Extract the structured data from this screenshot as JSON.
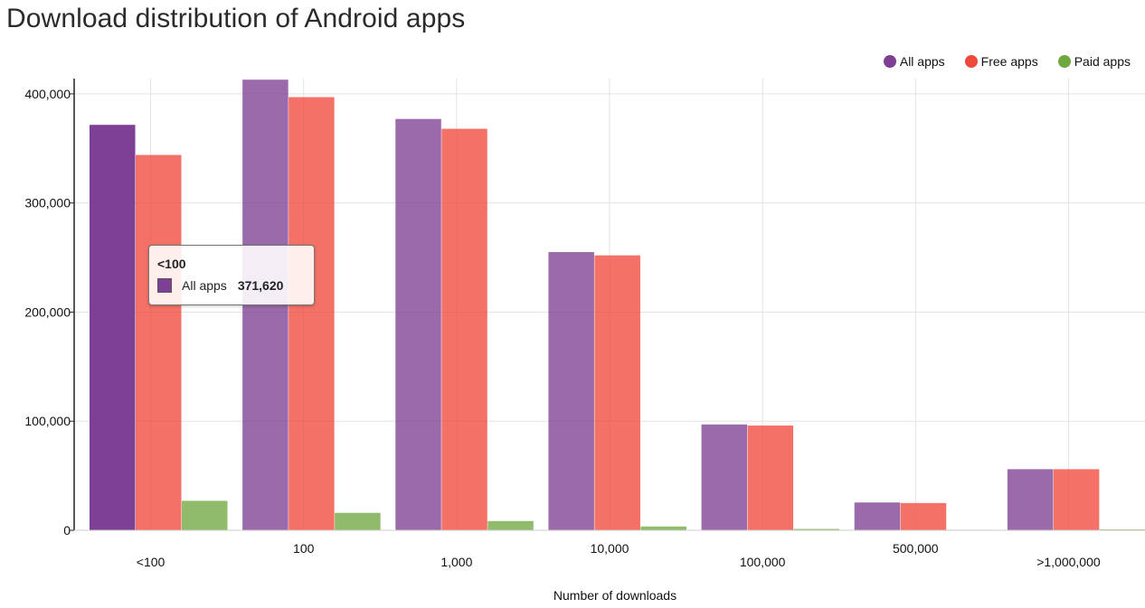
{
  "chart_data": {
    "type": "bar",
    "title": "Download distribution of Android apps",
    "xlabel": "Number of downloads",
    "ylabel": "",
    "categories": [
      "<100",
      "100",
      "1,000",
      "10,000",
      "100,000",
      "500,000",
      ">1,000,000"
    ],
    "series": [
      {
        "name": "All apps",
        "color": "#7e4094",
        "values": [
          371620,
          413000,
          377000,
          255000,
          97000,
          25500,
          56000
        ]
      },
      {
        "name": "Free apps",
        "color": "#f0493b",
        "values": [
          344000,
          397000,
          368000,
          252000,
          96000,
          25000,
          56000
        ]
      },
      {
        "name": "Paid apps",
        "color": "#6fa840",
        "values": [
          27000,
          16000,
          8500,
          3500,
          1200,
          500,
          800
        ]
      }
    ],
    "ylim": [
      0,
      414000
    ],
    "yticks": [
      0,
      100000,
      200000,
      300000,
      400000
    ],
    "ytick_labels": [
      "0",
      "100,000",
      "200,000",
      "300,000",
      "400,000"
    ],
    "grid": true,
    "legend_position": "top-right",
    "highlighted_category": "<100",
    "highlighted_series": "All apps"
  },
  "tooltip": {
    "title": "<100",
    "series_label": "All apps",
    "value_text": "371,620"
  }
}
